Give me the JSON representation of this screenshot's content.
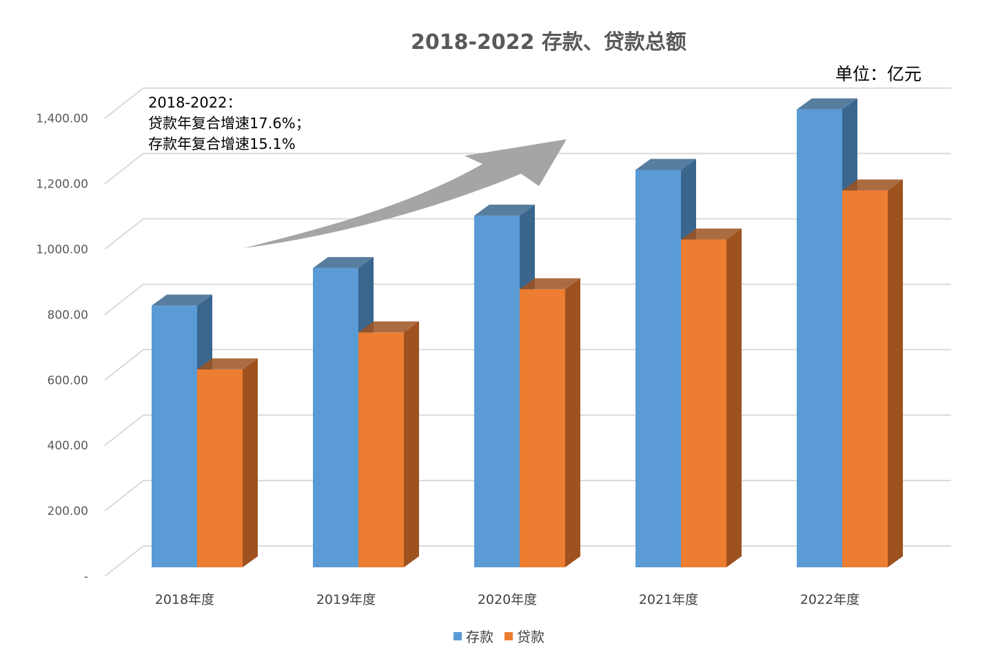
{
  "title": "2018-2022 存款、贷款总额",
  "unit_label": "单位：亿元",
  "annotation": {
    "line1": "2018-2022：",
    "line2": "贷款年复合增速17.6%；",
    "line3": "存款年复合增速15.1%"
  },
  "colors": {
    "deposit": "#5B9BD5",
    "deposit_side": "#3A668E",
    "loan": "#ED7D31",
    "loan_side": "#9E5220",
    "grid": "#D9D9D9",
    "arrow": "#A5A5A5"
  },
  "chart_data": {
    "type": "bar",
    "title": "2018-2022 存款、贷款总额",
    "xlabel": "",
    "ylabel": "",
    "categories": [
      "2018年度",
      "2019年度",
      "2020年度",
      "2021年度",
      "2022年度"
    ],
    "series": [
      {
        "name": "存款",
        "values": [
          800,
          915,
          1075,
          1215,
          1400
        ]
      },
      {
        "name": "贷款",
        "values": [
          605,
          718,
          850,
          1002,
          1152
        ]
      }
    ],
    "ylim": [
      0,
      1400
    ],
    "y_ticks": [
      "-",
      "200.00",
      "400.00",
      "600.00",
      "800.00",
      "1,000.00",
      "1,200.00",
      "1,400.00"
    ],
    "grid": true,
    "legend_position": "bottom"
  }
}
